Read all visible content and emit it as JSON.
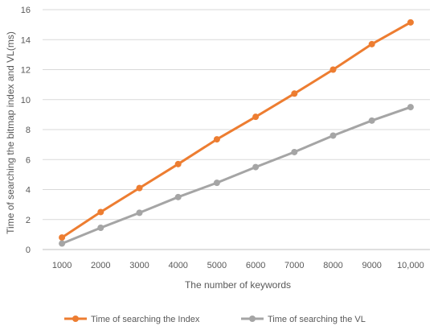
{
  "chart_data": {
    "type": "line",
    "title": "",
    "xlabel": "The number of  keywords",
    "ylabel": "Time of searching the bitmap index and VL(ms)",
    "categories": [
      "1000",
      "2000",
      "3000",
      "4000",
      "5000",
      "6000",
      "7000",
      "8000",
      "9000",
      "10,000"
    ],
    "ylim": [
      0,
      16
    ],
    "yticks": [
      "0",
      "2",
      "4",
      "6",
      "8",
      "10",
      "12",
      "14",
      "16"
    ],
    "grid": "horizontal",
    "legend_position": "bottom",
    "series": [
      {
        "name": "Time of searching the Index",
        "color": "#ED7D31",
        "values": [
          0.8,
          2.5,
          4.1,
          5.7,
          7.35,
          8.85,
          10.4,
          12.0,
          13.7,
          15.15
        ]
      },
      {
        "name": "Time of searching the VL",
        "color": "#A5A5A5",
        "values": [
          0.4,
          1.45,
          2.45,
          3.5,
          4.45,
          5.5,
          6.5,
          7.6,
          8.6,
          9.5
        ]
      }
    ]
  }
}
